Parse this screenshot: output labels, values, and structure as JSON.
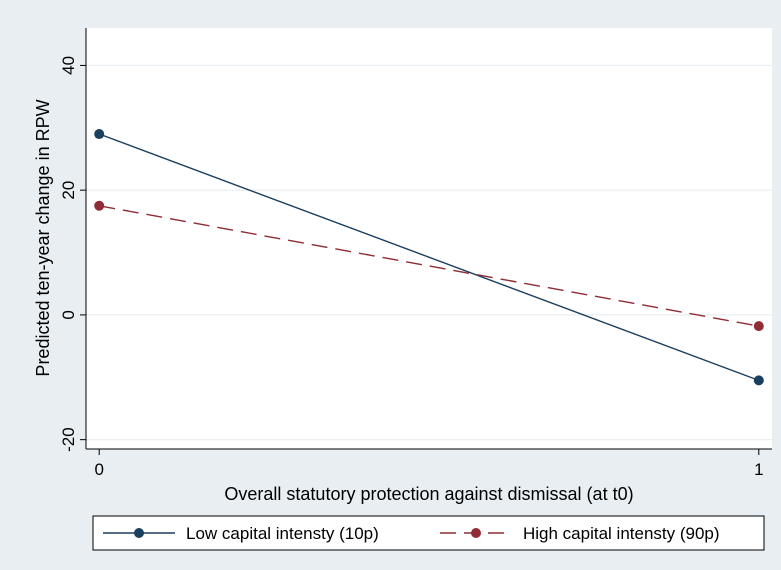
{
  "chart_data": {
    "type": "line",
    "title": "",
    "xlabel": "Overall statutory protection against dismissal (at t0)",
    "ylabel": "Predicted ten-year change in RPW",
    "x_ticks": [
      0,
      1
    ],
    "y_ticks": [
      -20,
      0,
      20,
      40
    ],
    "xlim": [
      -0.02,
      1.02
    ],
    "ylim": [
      -21.5,
      46
    ],
    "grid": true,
    "legend_position": "bottom",
    "series": [
      {
        "name": "Low capital intensty (10p)",
        "x": [
          0,
          1
        ],
        "y": [
          29,
          -10.5
        ],
        "color": "#1a3f5f",
        "line_style": "solid",
        "marker": "circle"
      },
      {
        "name": "High capital intensty (90p)",
        "x": [
          0,
          1
        ],
        "y": [
          17.5,
          -1.8
        ],
        "color": "#8f2c35",
        "line_style": "dashed",
        "marker": "circle"
      }
    ],
    "colors": {
      "outer_background": "#e9eef2",
      "plot_background": "#ffffff",
      "grid": "#e9eef2"
    }
  }
}
